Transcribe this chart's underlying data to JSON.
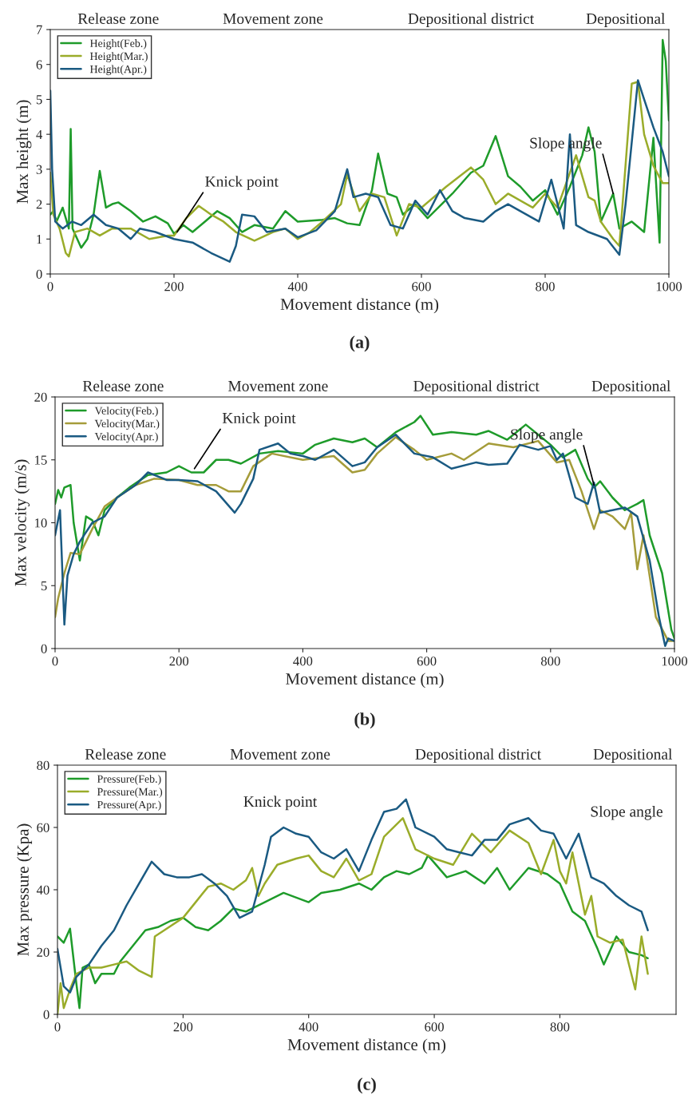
{
  "chart_data": [
    {
      "type": "line",
      "title": "(a)",
      "xlabel": "Movement distance (m)",
      "ylabel": "Max height (m)",
      "xlim": [
        0,
        1000
      ],
      "xticks": [
        0,
        200,
        400,
        600,
        800,
        1000
      ],
      "ylim": [
        0,
        7
      ],
      "yticks": [
        0,
        1,
        2,
        3,
        4,
        5,
        6,
        7
      ],
      "legend": "top left",
      "grid": false,
      "series": [
        {
          "name": "Height(Feb.)",
          "color": "#1e9b2a",
          "x": [
            0,
            5,
            10,
            20,
            30,
            33,
            36,
            50,
            60,
            70,
            80,
            90,
            100,
            110,
            130,
            150,
            170,
            190,
            200,
            215,
            230,
            250,
            270,
            290,
            310,
            330,
            360,
            380,
            400,
            440,
            460,
            480,
            500,
            520,
            530,
            545,
            560,
            570,
            590,
            610,
            650,
            680,
            700,
            720,
            740,
            760,
            780,
            800,
            820,
            840,
            860,
            870,
            880,
            890,
            910,
            920,
            940,
            960,
            975,
            985,
            990,
            995,
            1000
          ],
          "values": [
            1.7,
            1.8,
            1.5,
            1.9,
            1.3,
            4.15,
            1.3,
            0.75,
            1.0,
            1.7,
            2.95,
            1.9,
            2.0,
            2.05,
            1.8,
            1.5,
            1.65,
            1.45,
            1.15,
            1.4,
            1.2,
            1.5,
            1.8,
            1.6,
            1.2,
            1.4,
            1.3,
            1.8,
            1.5,
            1.55,
            1.6,
            1.45,
            1.4,
            2.4,
            3.45,
            2.3,
            2.2,
            1.7,
            2.0,
            1.6,
            2.3,
            2.9,
            3.1,
            3.95,
            2.8,
            2.5,
            2.1,
            2.4,
            1.7,
            2.5,
            3.4,
            4.2,
            3.5,
            1.5,
            2.3,
            1.3,
            1.5,
            1.2,
            3.9,
            0.9,
            6.7,
            6.1,
            4.4
          ]
        },
        {
          "name": "Height(Mar.)",
          "color": "#9aac2a",
          "x": [
            0,
            5,
            15,
            25,
            30,
            40,
            60,
            80,
            100,
            130,
            160,
            190,
            200,
            220,
            240,
            260,
            280,
            300,
            330,
            360,
            380,
            400,
            420,
            440,
            470,
            480,
            500,
            520,
            540,
            560,
            580,
            600,
            640,
            680,
            700,
            720,
            740,
            780,
            800,
            820,
            850,
            870,
            880,
            890,
            910,
            920,
            940,
            950,
            960,
            975,
            990,
            1000
          ],
          "values": [
            2.9,
            1.7,
            1.3,
            0.6,
            0.5,
            1.2,
            1.3,
            1.1,
            1.3,
            1.3,
            1.0,
            1.1,
            1.1,
            1.6,
            1.95,
            1.7,
            1.5,
            1.2,
            0.95,
            1.2,
            1.3,
            1.0,
            1.2,
            1.5,
            2.0,
            2.85,
            1.8,
            2.3,
            2.2,
            1.1,
            2.0,
            1.9,
            2.5,
            3.05,
            2.7,
            2.0,
            2.3,
            1.9,
            2.3,
            1.9,
            3.4,
            2.2,
            2.1,
            1.5,
            1.0,
            0.8,
            5.45,
            5.5,
            4.0,
            3.1,
            2.6,
            2.6
          ]
        },
        {
          "name": "Height(Apr.)",
          "color": "#1a5a82",
          "x": [
            0,
            3,
            8,
            20,
            35,
            50,
            70,
            90,
            110,
            130,
            145,
            170,
            200,
            230,
            260,
            290,
            300,
            310,
            330,
            350,
            380,
            400,
            430,
            460,
            480,
            490,
            510,
            530,
            550,
            570,
            590,
            610,
            630,
            650,
            670,
            700,
            720,
            740,
            760,
            790,
            810,
            830,
            840,
            850,
            870,
            900,
            920,
            930,
            950,
            960,
            975,
            990,
            1000
          ],
          "values": [
            5.25,
            3.0,
            1.5,
            1.3,
            1.5,
            1.4,
            1.7,
            1.4,
            1.3,
            1.0,
            1.3,
            1.2,
            1.0,
            0.9,
            0.6,
            0.35,
            0.8,
            1.7,
            1.65,
            1.2,
            1.3,
            1.05,
            1.25,
            1.8,
            3.0,
            2.2,
            2.3,
            2.2,
            1.4,
            1.3,
            2.1,
            1.7,
            2.4,
            1.8,
            1.6,
            1.5,
            1.8,
            2.0,
            1.8,
            1.5,
            2.7,
            1.3,
            4.0,
            1.4,
            1.2,
            1.0,
            0.55,
            2.0,
            5.55,
            5.0,
            4.2,
            3.5,
            2.8
          ]
        }
      ],
      "annotations": [
        "Release zone",
        "Movement zone",
        "Depositional district",
        "Depositional",
        {
          "text": "Knick point",
          "x": 205,
          "y": 1.2
        },
        {
          "text": "Slope angle",
          "x": 910,
          "y": 2.3
        }
      ]
    },
    {
      "type": "line",
      "title": "(b)",
      "xlabel": "Movement distance (m)",
      "ylabel": "Max velocity (m/s)",
      "xlim": [
        0,
        1000
      ],
      "xticks": [
        0,
        200,
        400,
        600,
        800,
        1000
      ],
      "ylim": [
        0,
        20
      ],
      "yticks": [
        0,
        5,
        10,
        15,
        20
      ],
      "legend": "top left",
      "grid": false,
      "series": [
        {
          "name": "Velocity(Feb.)",
          "color": "#1e9b2a",
          "x": [
            0,
            5,
            10,
            15,
            25,
            30,
            40,
            50,
            60,
            70,
            80,
            100,
            120,
            150,
            180,
            200,
            220,
            240,
            260,
            280,
            300,
            330,
            360,
            400,
            420,
            450,
            480,
            500,
            520,
            550,
            580,
            590,
            610,
            640,
            680,
            700,
            730,
            760,
            780,
            800,
            820,
            840,
            860,
            870,
            880,
            900,
            920,
            940,
            950,
            960,
            980,
            995,
            1000
          ],
          "values": [
            11.5,
            12.6,
            12.0,
            12.8,
            13.0,
            10.0,
            7.0,
            10.5,
            10.2,
            9.0,
            11.0,
            12.0,
            12.8,
            13.8,
            14.0,
            14.5,
            14.0,
            14.0,
            15.0,
            15.0,
            14.7,
            15.5,
            15.7,
            15.5,
            16.2,
            16.7,
            16.4,
            16.7,
            16.0,
            17.2,
            18.0,
            18.5,
            17.0,
            17.2,
            17.0,
            17.3,
            16.6,
            17.8,
            17.0,
            16.2,
            15.2,
            15.8,
            13.5,
            12.8,
            13.3,
            12.0,
            11.0,
            11.5,
            11.8,
            9.0,
            6.0,
            1.5,
            0.8
          ]
        },
        {
          "name": "Velocity(Mar.)",
          "color": "#a59c3a",
          "x": [
            0,
            5,
            15,
            25,
            40,
            60,
            80,
            100,
            130,
            160,
            200,
            230,
            260,
            280,
            300,
            320,
            350,
            400,
            450,
            480,
            500,
            520,
            550,
            580,
            600,
            640,
            660,
            700,
            740,
            780,
            810,
            830,
            850,
            870,
            880,
            900,
            920,
            930,
            940,
            950,
            970,
            990,
            1000
          ],
          "values": [
            2.5,
            4.0,
            6.0,
            7.6,
            7.5,
            9.5,
            11.3,
            12.0,
            13.0,
            13.5,
            13.4,
            13.0,
            13.0,
            12.5,
            12.5,
            14.5,
            15.5,
            15.0,
            15.3,
            14.0,
            14.2,
            15.5,
            16.8,
            15.8,
            15.0,
            15.5,
            15.0,
            16.3,
            16.0,
            16.5,
            14.8,
            15.0,
            12.5,
            9.5,
            11.0,
            10.5,
            9.5,
            10.8,
            6.3,
            9.0,
            2.5,
            0.6,
            0.6
          ]
        },
        {
          "name": "Velocity(Apr.)",
          "color": "#1a5a82",
          "x": [
            0,
            8,
            15,
            20,
            30,
            40,
            60,
            80,
            100,
            130,
            150,
            180,
            200,
            230,
            260,
            290,
            300,
            320,
            330,
            360,
            380,
            400,
            420,
            450,
            480,
            500,
            520,
            550,
            580,
            610,
            640,
            680,
            700,
            730,
            750,
            780,
            800,
            810,
            820,
            840,
            860,
            870,
            880,
            900,
            920,
            940,
            960,
            975,
            985,
            990,
            1000
          ],
          "values": [
            9.0,
            11.0,
            1.9,
            5.8,
            7.5,
            8.5,
            10.0,
            10.5,
            12.0,
            13.0,
            14.0,
            13.4,
            13.4,
            13.3,
            12.5,
            10.8,
            11.5,
            13.5,
            15.8,
            16.3,
            15.5,
            15.3,
            15.0,
            15.8,
            14.5,
            14.8,
            16.0,
            17.0,
            15.5,
            15.2,
            14.3,
            14.8,
            14.6,
            14.7,
            16.2,
            15.8,
            16.1,
            15.0,
            15.5,
            12.0,
            11.5,
            13.2,
            10.8,
            11.0,
            11.2,
            10.5,
            7.0,
            2.5,
            0.2,
            0.8,
            0.6
          ]
        }
      ],
      "annotations": [
        "Release zone",
        "Movement zone",
        "Depositional district",
        "Depositional",
        {
          "text": "Knick point",
          "x": 225,
          "y": 14.3
        },
        {
          "text": "Slope angle",
          "x": 870,
          "y": 13.0
        }
      ]
    },
    {
      "type": "line",
      "title": "(c)",
      "xlabel": "Movement distance (m)",
      "ylabel": "Max pressure (Kpa)",
      "xlim": [
        0,
        985
      ],
      "xticks": [
        0,
        200,
        400,
        600,
        800
      ],
      "ylim": [
        0,
        80
      ],
      "yticks": [
        0,
        20,
        40,
        60,
        80
      ],
      "legend": "top left",
      "grid": false,
      "series": [
        {
          "name": "Pressure(Feb.)",
          "color": "#1e9b2a",
          "x": [
            0,
            10,
            20,
            30,
            35,
            40,
            50,
            60,
            70,
            90,
            100,
            120,
            140,
            160,
            180,
            200,
            220,
            240,
            260,
            280,
            300,
            330,
            360,
            400,
            420,
            450,
            480,
            500,
            520,
            540,
            560,
            580,
            590,
            620,
            650,
            680,
            700,
            720,
            750,
            780,
            800,
            820,
            840,
            860,
            870,
            890,
            910,
            930,
            940
          ],
          "values": [
            25,
            23,
            27.5,
            10,
            2,
            15,
            16,
            10,
            13,
            13,
            17,
            22,
            27,
            28,
            30,
            31,
            28,
            27,
            30,
            34,
            33,
            36,
            39,
            36,
            39,
            40,
            42,
            40,
            44,
            46,
            45,
            47,
            51,
            44,
            46,
            42,
            47,
            40,
            47,
            45,
            42,
            33,
            30,
            21,
            16,
            25,
            20,
            19,
            18
          ]
        },
        {
          "name": "Pressure(Mar.)",
          "color": "#9aac2a",
          "x": [
            0,
            5,
            10,
            20,
            30,
            50,
            70,
            90,
            110,
            130,
            150,
            155,
            170,
            200,
            220,
            240,
            260,
            280,
            300,
            310,
            320,
            330,
            350,
            380,
            400,
            420,
            440,
            460,
            480,
            500,
            520,
            540,
            550,
            570,
            600,
            630,
            660,
            690,
            720,
            750,
            770,
            790,
            800,
            810,
            820,
            830,
            840,
            850,
            860,
            880,
            900,
            920,
            930,
            940
          ],
          "values": [
            0,
            10,
            2,
            8,
            13,
            15,
            15,
            16,
            17,
            14,
            12,
            25,
            27,
            31,
            36,
            41,
            42,
            40,
            43,
            47,
            38,
            42,
            48,
            50,
            51,
            46,
            44,
            50,
            43,
            45,
            57,
            61,
            63,
            53,
            50,
            48,
            58,
            52,
            59,
            55,
            45,
            56,
            46,
            42,
            52,
            42,
            32,
            38,
            25,
            23,
            24,
            8,
            25,
            13
          ]
        },
        {
          "name": "Pressure(Apr.)",
          "color": "#1a5a82",
          "x": [
            0,
            10,
            20,
            30,
            50,
            70,
            90,
            110,
            130,
            150,
            170,
            190,
            210,
            230,
            250,
            270,
            290,
            310,
            330,
            340,
            360,
            380,
            400,
            420,
            440,
            460,
            480,
            500,
            520,
            540,
            555,
            570,
            600,
            620,
            640,
            660,
            680,
            700,
            720,
            750,
            770,
            790,
            810,
            830,
            850,
            870,
            890,
            910,
            930,
            940
          ],
          "values": [
            21,
            9,
            7,
            12,
            16,
            22,
            27,
            35,
            42,
            49,
            45,
            44,
            44,
            45,
            42,
            38,
            31,
            33,
            48,
            57,
            60,
            58,
            57,
            52,
            50,
            53,
            46,
            56,
            65,
            66,
            69,
            60,
            57,
            53,
            52,
            51,
            56,
            56,
            61,
            63,
            59,
            58,
            50,
            58,
            44,
            42,
            38,
            35,
            33,
            27
          ]
        }
      ],
      "annotations": [
        "Release zone",
        "Movement zone",
        "Depositional district",
        "Depositional",
        "Knick point",
        "Slope angle"
      ]
    }
  ]
}
